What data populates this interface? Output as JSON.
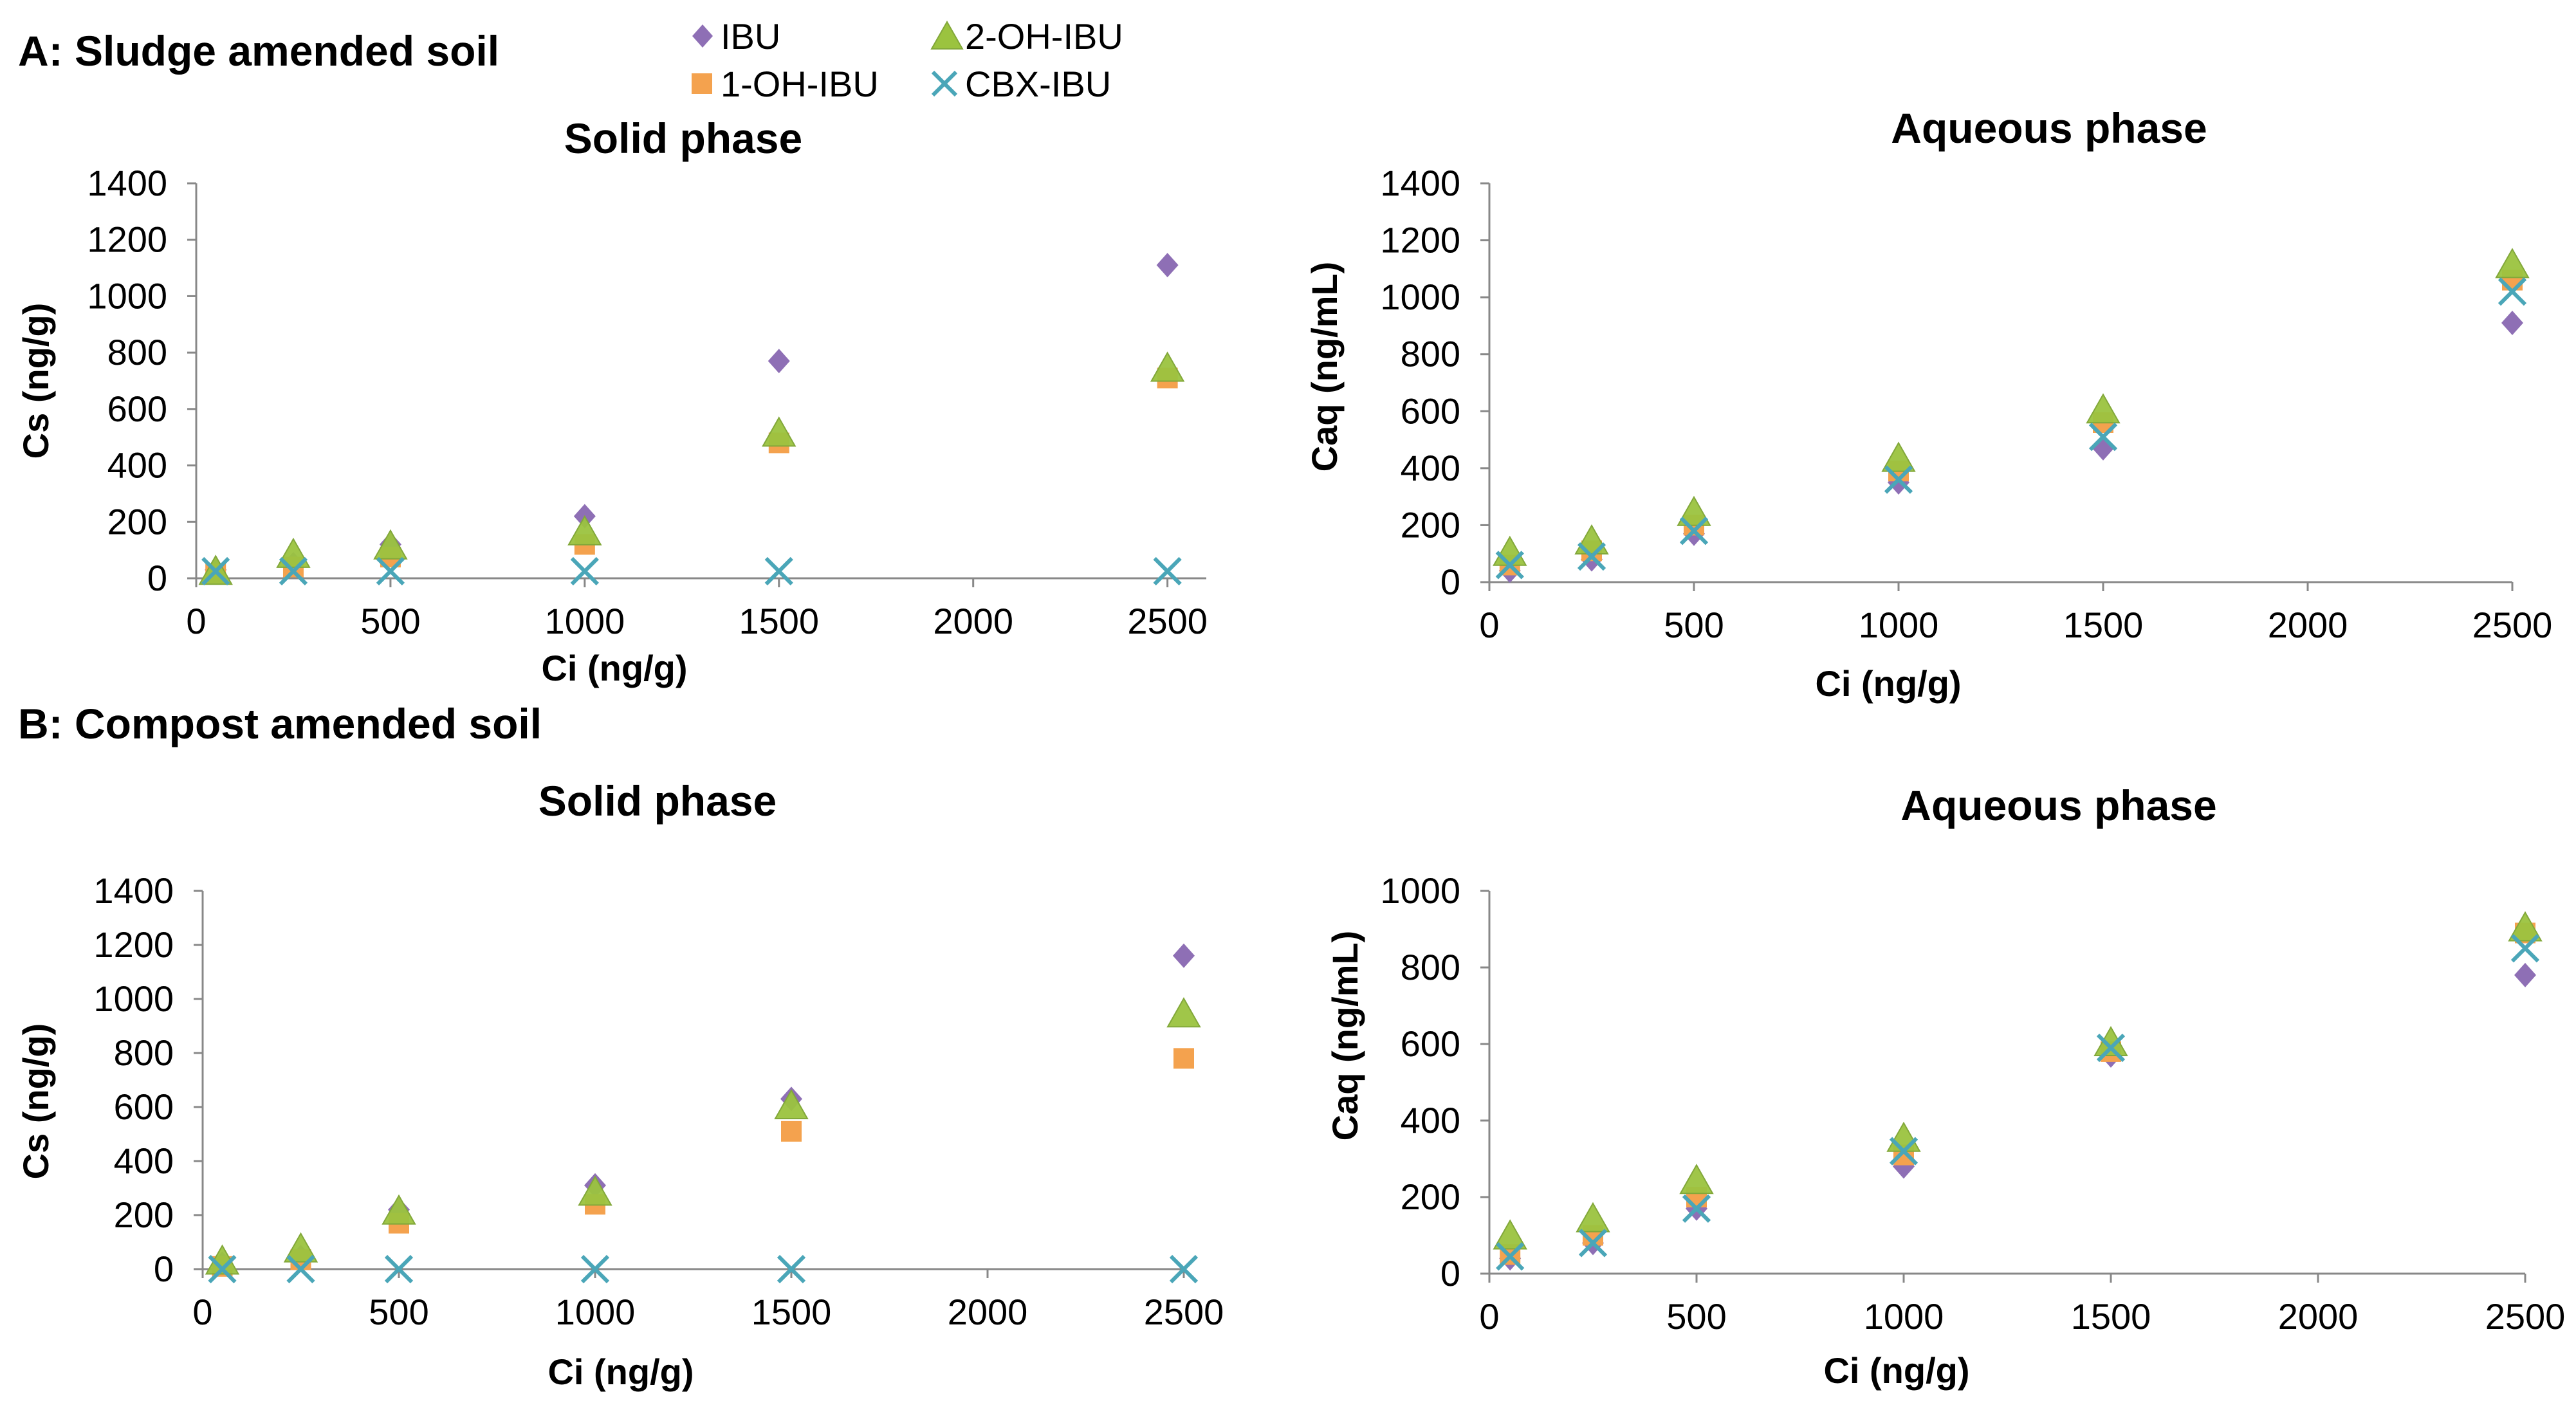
{
  "figure": {
    "section_a": "A: Sludge amended soil",
    "section_b": "B: Compost amended soil"
  },
  "legend": {
    "items": [
      {
        "name": "IBU",
        "marker": "diamond",
        "color": "#8e6fb5"
      },
      {
        "name": "2-OH-IBU",
        "marker": "triangle",
        "color": "#9bc33f"
      },
      {
        "name": "1-OH-IBU",
        "marker": "square",
        "color": "#f4a24e"
      },
      {
        "name": "CBX-IBU",
        "marker": "x",
        "color": "#4aa6b8"
      }
    ]
  },
  "chart_data": [
    {
      "type": "scatter",
      "title": "Solid phase",
      "xlabel": "Ci (ng/g)",
      "ylabel": "Cs (ng/g)",
      "xlim": [
        0,
        2600
      ],
      "ylim": [
        0,
        1400
      ],
      "xticks": [
        0,
        500,
        1000,
        1500,
        2000,
        2500
      ],
      "yticks": [
        0,
        200,
        400,
        600,
        800,
        1000,
        1200,
        1400
      ],
      "x": [
        50,
        250,
        500,
        1000,
        1500,
        2500
      ],
      "series": [
        {
          "name": "IBU",
          "values": [
            30,
            50,
            120,
            220,
            770,
            1110
          ]
        },
        {
          "name": "1-OH-IBU",
          "values": [
            15,
            40,
            75,
            120,
            480,
            710
          ]
        },
        {
          "name": "2-OH-IBU",
          "values": [
            20,
            80,
            110,
            160,
            510,
            740
          ]
        },
        {
          "name": "CBX-IBU",
          "values": [
            25,
            25,
            25,
            25,
            25,
            25
          ]
        }
      ]
    },
    {
      "type": "scatter",
      "title": "Aqueous phase",
      "xlabel": "Ci (ng/g)",
      "ylabel": "Caq (ng/mL)",
      "xlim": [
        0,
        2500
      ],
      "ylim": [
        0,
        1400
      ],
      "xticks": [
        0,
        500,
        1000,
        1500,
        2000,
        2500
      ],
      "yticks": [
        0,
        200,
        400,
        600,
        800,
        1000,
        1200,
        1400
      ],
      "x": [
        50,
        250,
        500,
        1000,
        1500,
        2500
      ],
      "series": [
        {
          "name": "IBU",
          "values": [
            40,
            80,
            170,
            350,
            470,
            910
          ]
        },
        {
          "name": "1-OH-IBU",
          "values": [
            60,
            110,
            200,
            390,
            560,
            1060
          ]
        },
        {
          "name": "2-OH-IBU",
          "values": [
            100,
            140,
            240,
            430,
            600,
            1110
          ]
        },
        {
          "name": "CBX-IBU",
          "values": [
            60,
            90,
            180,
            360,
            510,
            1020
          ]
        }
      ]
    },
    {
      "type": "scatter",
      "title": "Solid phase",
      "xlabel": "Ci (ng/g)",
      "ylabel": "Cs (ng/g)",
      "xlim": [
        0,
        2500
      ],
      "ylim": [
        0,
        1400
      ],
      "xticks": [
        0,
        500,
        1000,
        1500,
        2000,
        2500
      ],
      "yticks": [
        0,
        200,
        400,
        600,
        800,
        1000,
        1200,
        1400
      ],
      "x": [
        50,
        250,
        500,
        1000,
        1500,
        2500
      ],
      "series": [
        {
          "name": "IBU",
          "values": [
            20,
            45,
            220,
            310,
            630,
            1160
          ]
        },
        {
          "name": "1-OH-IBU",
          "values": [
            10,
            35,
            170,
            240,
            510,
            780
          ]
        },
        {
          "name": "2-OH-IBU",
          "values": [
            25,
            70,
            210,
            280,
            600,
            940
          ]
        },
        {
          "name": "CBX-IBU",
          "values": [
            0,
            0,
            0,
            0,
            0,
            0
          ]
        }
      ]
    },
    {
      "type": "scatter",
      "title": "Aqueous phase",
      "xlabel": "Ci (ng/g)",
      "ylabel": "Caq (ng/mL)",
      "xlim": [
        0,
        2500
      ],
      "ylim": [
        0,
        1000
      ],
      "xticks": [
        0,
        500,
        1000,
        1500,
        2000,
        2500
      ],
      "yticks": [
        0,
        200,
        400,
        600,
        800,
        1000
      ],
      "x": [
        50,
        250,
        500,
        1000,
        1500,
        2500
      ],
      "series": [
        {
          "name": "IBU",
          "values": [
            40,
            80,
            170,
            280,
            570,
            780
          ]
        },
        {
          "name": "1-OH-IBU",
          "values": [
            50,
            100,
            200,
            310,
            580,
            890
          ]
        },
        {
          "name": "2-OH-IBU",
          "values": [
            95,
            140,
            240,
            350,
            600,
            900
          ]
        },
        {
          "name": "CBX-IBU",
          "values": [
            45,
            80,
            170,
            320,
            590,
            850
          ]
        }
      ]
    }
  ]
}
